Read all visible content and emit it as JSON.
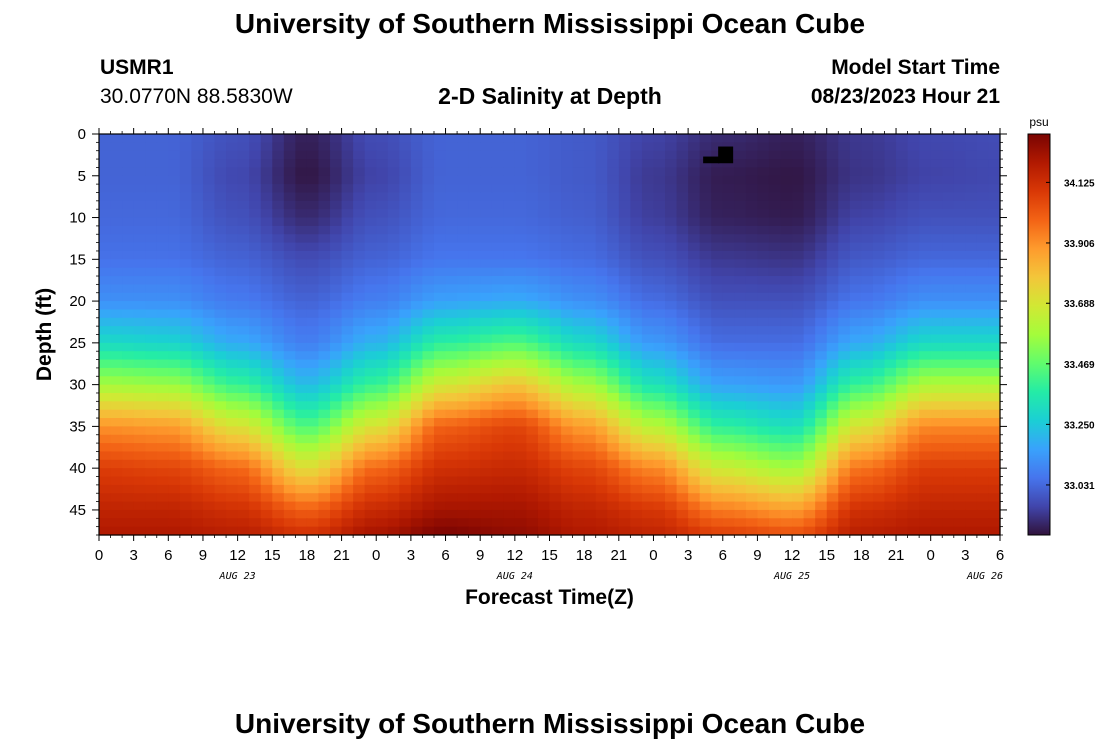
{
  "header": {
    "title": "University of Southern Mississippi Ocean Cube",
    "footer_title": "University of Southern Mississippi Ocean Cube",
    "station": "USMR1",
    "coords": "30.0770N  88.5830W",
    "subtitle": "2-D Salinity at Depth",
    "model_start_label": "Model Start Time",
    "model_start_value": "08/23/2023 Hour 21"
  },
  "chart_data": {
    "type": "heatmap",
    "title": "2-D Salinity at Depth",
    "xlabel": "Forecast Time(Z)",
    "ylabel": "Depth (ft)",
    "x_ticks": [
      "0",
      "3",
      "6",
      "9",
      "12",
      "15",
      "18",
      "21",
      "0",
      "3",
      "6",
      "9",
      "12",
      "15",
      "18",
      "21",
      "0",
      "3",
      "6",
      "9",
      "12",
      "15",
      "18",
      "21",
      "0",
      "3",
      "6"
    ],
    "x_range_hours": [
      0,
      78
    ],
    "date_labels": [
      {
        "text": "AUG 23",
        "hour": 12
      },
      {
        "text": "AUG 24",
        "hour": 36
      },
      {
        "text": "AUG 25",
        "hour": 60
      },
      {
        "text": "AUG 26",
        "hour": 78
      }
    ],
    "y_ticks": [
      0,
      5,
      10,
      15,
      20,
      25,
      30,
      35,
      40,
      45
    ],
    "y_range_ft": [
      0,
      48
    ],
    "colorbar": {
      "unit": "psu",
      "min": 32.85,
      "max": 34.3,
      "ticks": [
        "33.031",
        "33.250",
        "33.469",
        "33.688",
        "33.906",
        "34.125"
      ],
      "tick_values": [
        33.031,
        33.25,
        33.469,
        33.688,
        33.906,
        34.125
      ]
    },
    "colors": [
      "#30123b",
      "#4145ab",
      "#4675ed",
      "#39a2fc",
      "#1bcfd4",
      "#24eca6",
      "#61fc6c",
      "#a4fc3b",
      "#d1e834",
      "#f3c63a",
      "#fe9b2d",
      "#f36315",
      "#d93806",
      "#b11901",
      "#7a0402"
    ],
    "salinity_grid": {
      "hours": [
        0,
        6,
        12,
        18,
        24,
        30,
        36,
        42,
        48,
        54,
        60,
        66,
        72,
        78
      ],
      "depths_ft": [
        0,
        5,
        10,
        15,
        20,
        25,
        30,
        35,
        40,
        45,
        48
      ],
      "values_psu": [
        [
          33.02,
          33.02,
          32.98,
          32.88,
          32.97,
          33.02,
          33.02,
          33.0,
          32.95,
          32.9,
          32.88,
          32.93,
          32.96,
          32.97
        ],
        [
          33.02,
          33.02,
          32.96,
          32.86,
          32.95,
          33.02,
          33.02,
          33.0,
          32.93,
          32.87,
          32.86,
          32.92,
          32.95,
          32.96
        ],
        [
          33.03,
          33.03,
          32.98,
          32.9,
          32.98,
          33.03,
          33.03,
          33.01,
          32.94,
          32.88,
          32.87,
          32.95,
          32.98,
          32.98
        ],
        [
          33.05,
          33.05,
          33.02,
          32.97,
          33.02,
          33.06,
          33.06,
          33.04,
          32.98,
          32.93,
          32.92,
          33.0,
          33.03,
          33.03
        ],
        [
          33.12,
          33.12,
          33.07,
          33.02,
          33.08,
          33.16,
          33.18,
          33.12,
          33.04,
          32.98,
          32.98,
          33.06,
          33.12,
          33.12
        ],
        [
          33.3,
          33.28,
          33.18,
          33.08,
          33.2,
          33.38,
          33.44,
          33.3,
          33.14,
          33.04,
          33.04,
          33.18,
          33.3,
          33.3
        ],
        [
          33.58,
          33.56,
          33.4,
          33.22,
          33.4,
          33.68,
          33.78,
          33.58,
          33.33,
          33.16,
          33.14,
          33.4,
          33.6,
          33.6
        ],
        [
          33.9,
          33.88,
          33.7,
          33.44,
          33.7,
          34.0,
          34.06,
          33.88,
          33.62,
          33.38,
          33.32,
          33.7,
          33.92,
          33.92
        ],
        [
          34.08,
          34.06,
          33.98,
          33.72,
          33.98,
          34.12,
          34.14,
          34.06,
          33.92,
          33.66,
          33.58,
          33.96,
          34.08,
          34.08
        ],
        [
          34.16,
          34.16,
          34.12,
          34.0,
          34.14,
          34.22,
          34.22,
          34.16,
          34.1,
          33.94,
          33.88,
          34.12,
          34.16,
          34.16
        ],
        [
          34.2,
          34.2,
          34.18,
          34.12,
          34.22,
          34.3,
          34.26,
          34.2,
          34.16,
          34.08,
          34.04,
          34.18,
          34.2,
          34.2
        ]
      ]
    }
  }
}
